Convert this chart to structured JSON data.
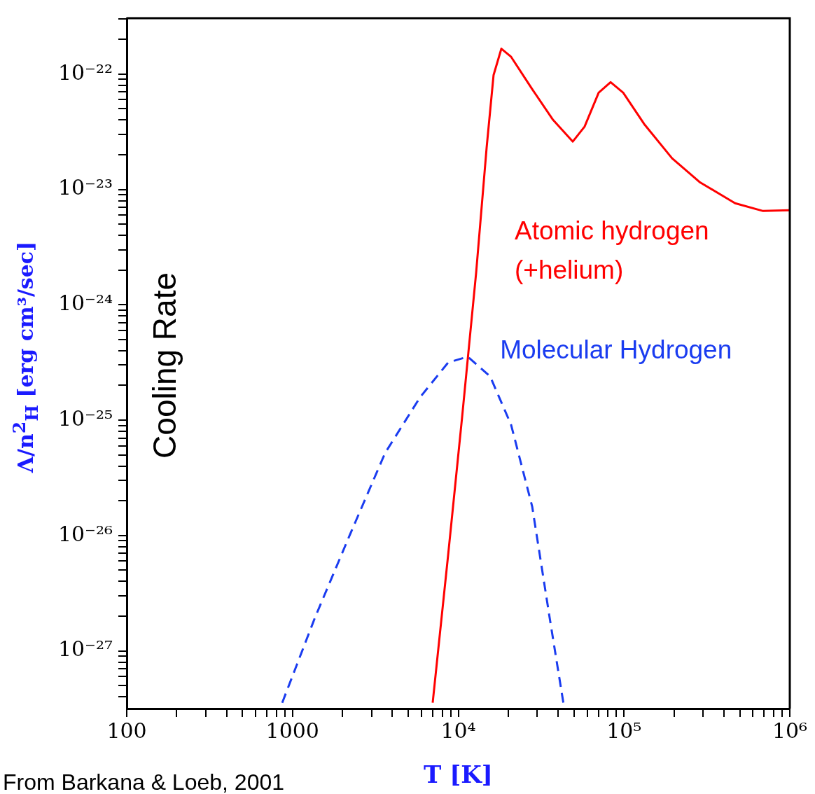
{
  "chart_data": {
    "type": "line",
    "xlabel": "T [K]",
    "ylabel": "Λ/n$^{2}$$_{H}$ [erg cm³/sec]",
    "log": "xy",
    "legend": false,
    "marker": "none",
    "xlim": [
      100,
      1000000
    ],
    "ylim": [
      3.16e-28,
      3.05e-22
    ],
    "xticks": [
      100,
      {
        "value": 200,
        "label": null
      },
      {
        "value": 300,
        "label": null
      },
      {
        "value": 400,
        "label": null
      },
      {
        "value": 500,
        "label": null
      },
      {
        "value": 600,
        "label": null
      },
      {
        "value": 700,
        "label": null
      },
      {
        "value": 800,
        "label": null
      },
      {
        "value": 900,
        "label": null
      },
      1000,
      {
        "value": 2000,
        "label": null
      },
      {
        "value": 3000,
        "label": null
      },
      {
        "value": 4000,
        "label": null
      },
      {
        "value": 5000,
        "label": null
      },
      {
        "value": 6000,
        "label": null
      },
      {
        "value": 7000,
        "label": null
      },
      {
        "value": 8000,
        "label": null
      },
      {
        "value": 9000,
        "label": null
      },
      {
        "value": 10000,
        "label": "10⁴"
      },
      {
        "value": 20000,
        "label": null
      },
      {
        "value": 30000,
        "label": null
      },
      {
        "value": 40000,
        "label": null
      },
      {
        "value": 50000,
        "label": null
      },
      {
        "value": 60000,
        "label": null
      },
      {
        "value": 70000,
        "label": null
      },
      {
        "value": 80000,
        "label": null
      },
      {
        "value": 90000,
        "label": null
      },
      {
        "value": 100000,
        "label": "10⁵"
      },
      {
        "value": 200000,
        "label": null
      },
      {
        "value": 300000,
        "label": null
      },
      {
        "value": 400000,
        "label": null
      },
      {
        "value": 500000,
        "label": null
      },
      {
        "value": 600000,
        "label": null
      },
      {
        "value": 700000,
        "label": null
      },
      {
        "value": 800000,
        "label": null
      },
      {
        "value": 900000,
        "label": null
      },
      {
        "value": 1000000,
        "label": "10⁶"
      }
    ],
    "yticks": [
      {
        "value": 4e-28,
        "label": null
      },
      {
        "value": 5e-28,
        "label": null
      },
      {
        "value": 6e-28,
        "label": null
      },
      {
        "value": 7e-28,
        "label": null
      },
      {
        "value": 8e-28,
        "label": null
      },
      {
        "value": 9e-28,
        "label": null
      },
      {
        "value": 1e-27,
        "label": "10⁻²⁷"
      },
      {
        "value": 2e-27,
        "label": null
      },
      {
        "value": 3e-27,
        "label": null
      },
      {
        "value": 4e-27,
        "label": null
      },
      {
        "value": 5e-27,
        "label": null
      },
      {
        "value": 6e-27,
        "label": null
      },
      {
        "value": 7e-27,
        "label": null
      },
      {
        "value": 8e-27,
        "label": null
      },
      {
        "value": 9e-27,
        "label": null
      },
      {
        "value": 1e-26,
        "label": "10⁻²⁶"
      },
      {
        "value": 2e-26,
        "label": null
      },
      {
        "value": 3e-26,
        "label": null
      },
      {
        "value": 4e-26,
        "label": null
      },
      {
        "value": 5e-26,
        "label": null
      },
      {
        "value": 6e-26,
        "label": null
      },
      {
        "value": 7e-26,
        "label": null
      },
      {
        "value": 8e-26,
        "label": null
      },
      {
        "value": 9e-26,
        "label": null
      },
      {
        "value": 1e-25,
        "label": "10⁻²⁵"
      },
      {
        "value": 2e-25,
        "label": null
      },
      {
        "value": 3e-25,
        "label": null
      },
      {
        "value": 4e-25,
        "label": null
      },
      {
        "value": 5e-25,
        "label": null
      },
      {
        "value": 6e-25,
        "label": null
      },
      {
        "value": 7e-25,
        "label": null
      },
      {
        "value": 8e-25,
        "label": null
      },
      {
        "value": 9e-25,
        "label": null
      },
      {
        "value": 1e-24,
        "label": "10⁻²⁴"
      },
      {
        "value": 2e-24,
        "label": null
      },
      {
        "value": 3e-24,
        "label": null
      },
      {
        "value": 4e-24,
        "label": null
      },
      {
        "value": 5e-24,
        "label": null
      },
      {
        "value": 6e-24,
        "label": null
      },
      {
        "value": 7e-24,
        "label": null
      },
      {
        "value": 8e-24,
        "label": null
      },
      {
        "value": 9e-24,
        "label": null
      },
      {
        "value": 1e-23,
        "label": "10⁻²³"
      },
      {
        "value": 2e-23,
        "label": null
      },
      {
        "value": 3e-23,
        "label": null
      },
      {
        "value": 4e-23,
        "label": null
      },
      {
        "value": 5e-23,
        "label": null
      },
      {
        "value": 6e-23,
        "label": null
      },
      {
        "value": 7e-23,
        "label": null
      },
      {
        "value": 8e-23,
        "label": null
      },
      {
        "value": 9e-23,
        "label": null
      },
      {
        "value": 1e-22,
        "label": "10⁻²²"
      },
      {
        "value": 2e-22,
        "label": null
      },
      {
        "value": 3e-22,
        "label": null
      }
    ],
    "series": [
      {
        "name": "Atomic hydrogen (+helium)",
        "color": "#ff0000",
        "line_style": "solid",
        "x": [
          7010,
          8690,
          10540,
          12820,
          14830,
          16330,
          18200,
          20840,
          27930,
          37330,
          49090,
          57810,
          70310,
          82990,
          98850,
          132100,
          195000,
          287700,
          467700,
          690200,
          1000000
        ],
        "values": [
          3.55e-28,
          6.8e-27,
          1.05e-25,
          1.9e-24,
          2.3e-23,
          9.8e-23,
          1.66e-22,
          1.41e-22,
          7.4e-23,
          4e-23,
          2.6e-23,
          3.5e-23,
          6.9e-23,
          8.5e-23,
          6.9e-23,
          3.7e-23,
          1.86e-23,
          1.15e-23,
          7.6e-24,
          6.5e-24,
          6.6e-24
        ]
      },
      {
        "name": "Molecular Hydrogen",
        "color": "#1a3cf0",
        "line_style": "dashed",
        "x": [
          867,
          1368,
          2223,
          3622,
          5888,
          8690,
          11400,
          15560,
          20840,
          27930,
          35560,
          43050
        ],
        "values": [
          3.55e-28,
          1.95e-27,
          1.02e-26,
          5.2e-26,
          1.58e-25,
          3.16e-25,
          3.55e-25,
          2.4e-25,
          9.1e-26,
          1.78e-26,
          1.95e-27,
          3.55e-28
        ]
      }
    ],
    "annotations": [
      "Cooling Rate",
      "From Barkana & Loeb, 2001"
    ]
  }
}
